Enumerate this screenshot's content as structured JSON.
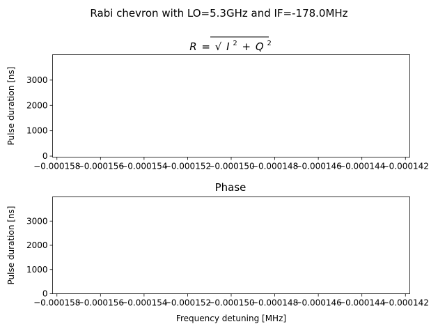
{
  "suptitle": "Rabi chevron with LO=5.3GHz and IF=-178.0MHz",
  "chart_data": [
    {
      "type": "heatmap",
      "title": "R=√(I²+Q²)",
      "title_parts": {
        "base": "R",
        "eq": "=",
        "i": "I",
        "i_exp": "2",
        "plus": "+",
        "q": "Q",
        "q_exp": "2"
      },
      "xlabel": "",
      "ylabel": "Pulse duration [ns]",
      "xlim": [
        -0.0001582,
        -0.0001418
      ],
      "ylim": [
        -40,
        4000
      ],
      "x_ticks": [
        -0.000158,
        -0.000156,
        -0.000154,
        -0.000152,
        -0.00015,
        -0.000148,
        -0.000146,
        -0.000144,
        -0.000142
      ],
      "x_tick_labels": [
        "−0.000158",
        "−0.000156",
        "−0.000154",
        "−0.000152",
        "−0.000150",
        "−0.000148",
        "−0.000146",
        "−0.000144",
        "−0.000142"
      ],
      "y_ticks": [
        0,
        1000,
        2000,
        3000
      ],
      "y_tick_labels": [
        "0",
        "1000",
        "2000",
        "3000"
      ],
      "grid": false,
      "values": []
    },
    {
      "type": "heatmap",
      "title": "Phase",
      "xlabel": "Frequency detuning [MHz]",
      "ylabel": "Pulse duration [ns]",
      "xlim": [
        -0.0001582,
        -0.0001418
      ],
      "ylim": [
        0,
        4000
      ],
      "x_ticks": [
        -0.000158,
        -0.000156,
        -0.000154,
        -0.000152,
        -0.00015,
        -0.000148,
        -0.000146,
        -0.000144,
        -0.000142
      ],
      "x_tick_labels": [
        "−0.000158",
        "−0.000156",
        "−0.000154",
        "−0.000152",
        "−0.000150",
        "−0.000148",
        "−0.000146",
        "−0.000144",
        "−0.000142"
      ],
      "y_ticks": [
        0,
        1000,
        2000,
        3000
      ],
      "y_tick_labels": [
        "0",
        "1000",
        "2000",
        "3000"
      ],
      "grid": false,
      "values": []
    }
  ]
}
